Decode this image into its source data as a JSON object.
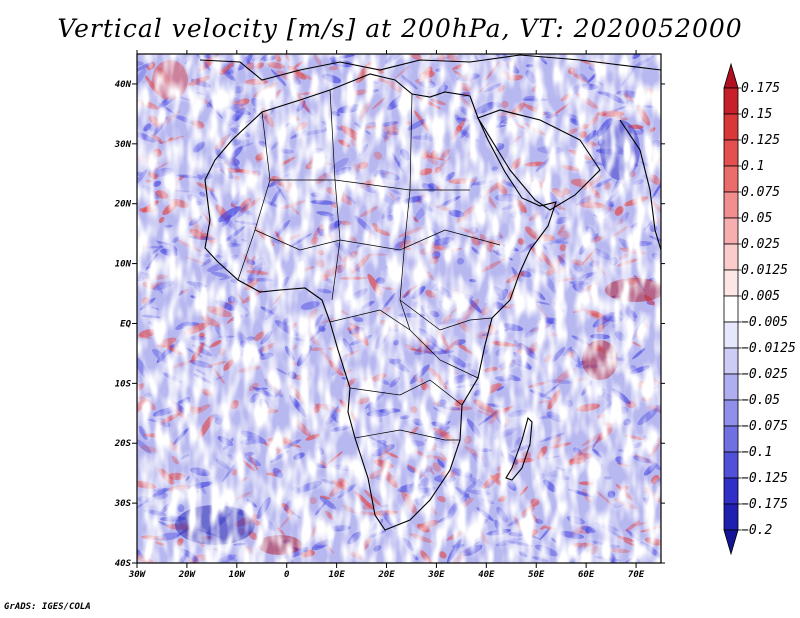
{
  "title": "Vertical velocity [m/s] at 200hPa, VT: 2020052000",
  "credit": "GrADS: IGES/COLA",
  "map": {
    "lon_range": [
      -30,
      75
    ],
    "lat_range": [
      -40,
      45
    ],
    "lon_ticks": [
      {
        "value": -30,
        "label": "30W"
      },
      {
        "value": -20,
        "label": "20W"
      },
      {
        "value": -10,
        "label": "10W"
      },
      {
        "value": 0,
        "label": "0"
      },
      {
        "value": 10,
        "label": "10E"
      },
      {
        "value": 20,
        "label": "20E"
      },
      {
        "value": 30,
        "label": "30E"
      },
      {
        "value": 40,
        "label": "40E"
      },
      {
        "value": 50,
        "label": "50E"
      },
      {
        "value": 60,
        "label": "60E"
      },
      {
        "value": 70,
        "label": "70E"
      }
    ],
    "lat_ticks": [
      {
        "value": 40,
        "label": "40N"
      },
      {
        "value": 30,
        "label": "30N"
      },
      {
        "value": 20,
        "label": "20N"
      },
      {
        "value": 10,
        "label": "10N"
      },
      {
        "value": 0,
        "label": "EQ"
      },
      {
        "value": -10,
        "label": "10S"
      },
      {
        "value": -20,
        "label": "20S"
      },
      {
        "value": -30,
        "label": "30S"
      },
      {
        "value": -40,
        "label": "40S"
      }
    ],
    "field_colors": {
      "positive": "#e24a4a",
      "negative": "#4848e0",
      "neutral": "#ffffff"
    }
  },
  "colorbar": {
    "levels": [
      "0.175",
      "0.15",
      "0.125",
      "0.1",
      "0.075",
      "0.05",
      "0.025",
      "0.0125",
      "0.005",
      "-0.005",
      "-0.0125",
      "-0.025",
      "-0.05",
      "-0.075",
      "-0.1",
      "-0.125",
      "-0.175",
      "-0.2"
    ],
    "colors": [
      "#b01020",
      "#c8202a",
      "#d83838",
      "#e45050",
      "#ec6c6c",
      "#f28e8e",
      "#f6aeae",
      "#facccc",
      "#fde6e6",
      "#ffffff",
      "#e6e6fc",
      "#ccccf6",
      "#aeaef0",
      "#9090ea",
      "#7070e2",
      "#5050d8",
      "#3030c8",
      "#2020b0",
      "#141496"
    ]
  }
}
